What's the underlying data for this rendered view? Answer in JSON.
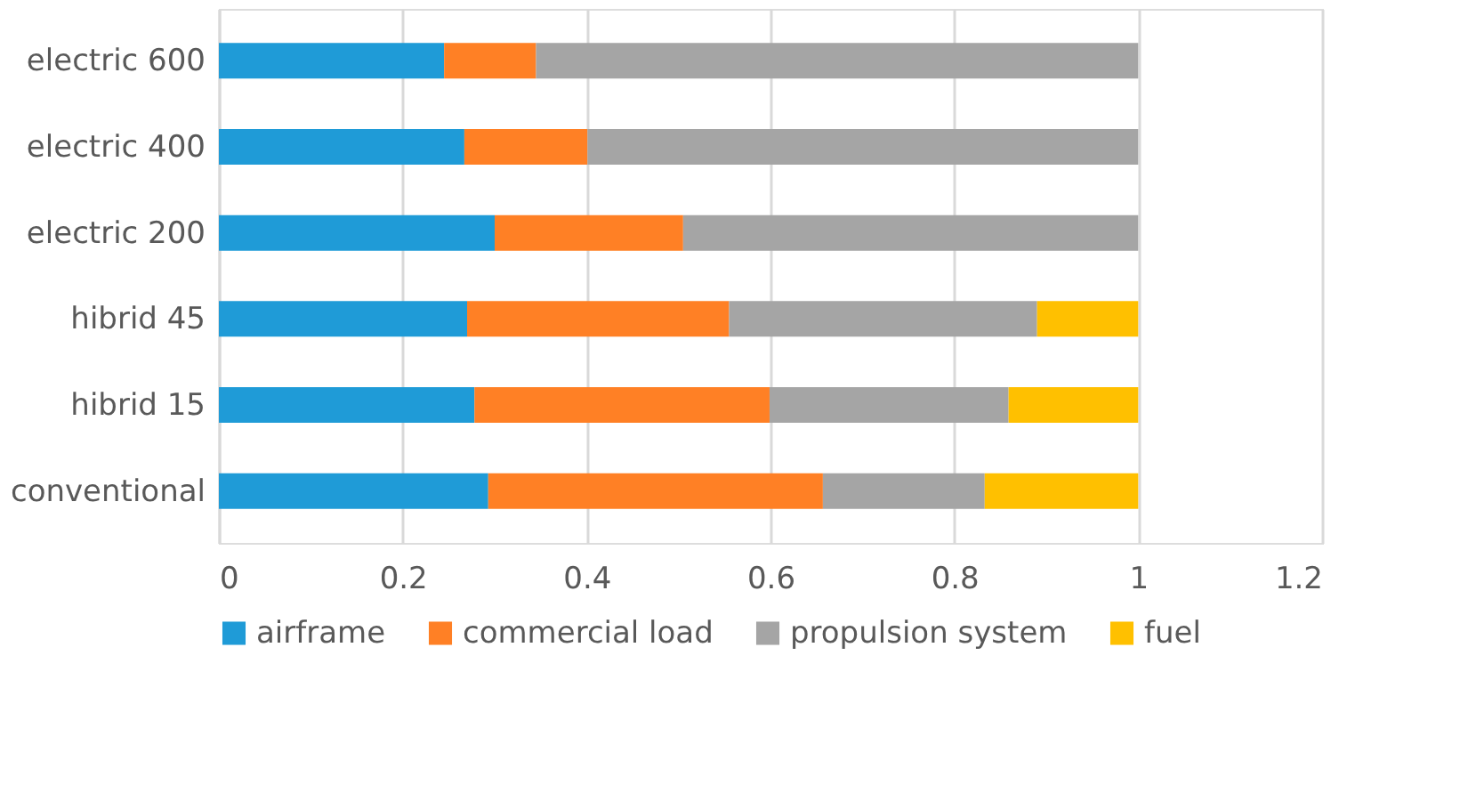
{
  "chart_data": {
    "type": "bar",
    "orientation": "horizontal",
    "stacked": true,
    "categories": [
      "electric 600",
      "electric 400",
      "electric 200",
      "hibrid 45",
      "hibrid 15",
      "conventional"
    ],
    "series": [
      {
        "name": "airframe",
        "color": "#1f9bd7",
        "values": [
          0.245,
          0.267,
          0.3,
          0.27,
          0.278,
          0.293
        ]
      },
      {
        "name": "commercial load",
        "color": "#ff8025",
        "values": [
          0.1,
          0.134,
          0.205,
          0.285,
          0.321,
          0.364
        ]
      },
      {
        "name": "propulsion system",
        "color": "#a5a5a5",
        "values": [
          0.655,
          0.599,
          0.495,
          0.335,
          0.26,
          0.176
        ]
      },
      {
        "name": "fuel",
        "color": "#ffc000",
        "values": [
          0,
          0,
          0,
          0.11,
          0.141,
          0.167
        ]
      }
    ],
    "xlim": [
      0,
      1.2
    ],
    "xticks": [
      0,
      0.2,
      0.4,
      0.6,
      0.8,
      1,
      1.2
    ],
    "grid": "x",
    "legend": "bottom"
  }
}
